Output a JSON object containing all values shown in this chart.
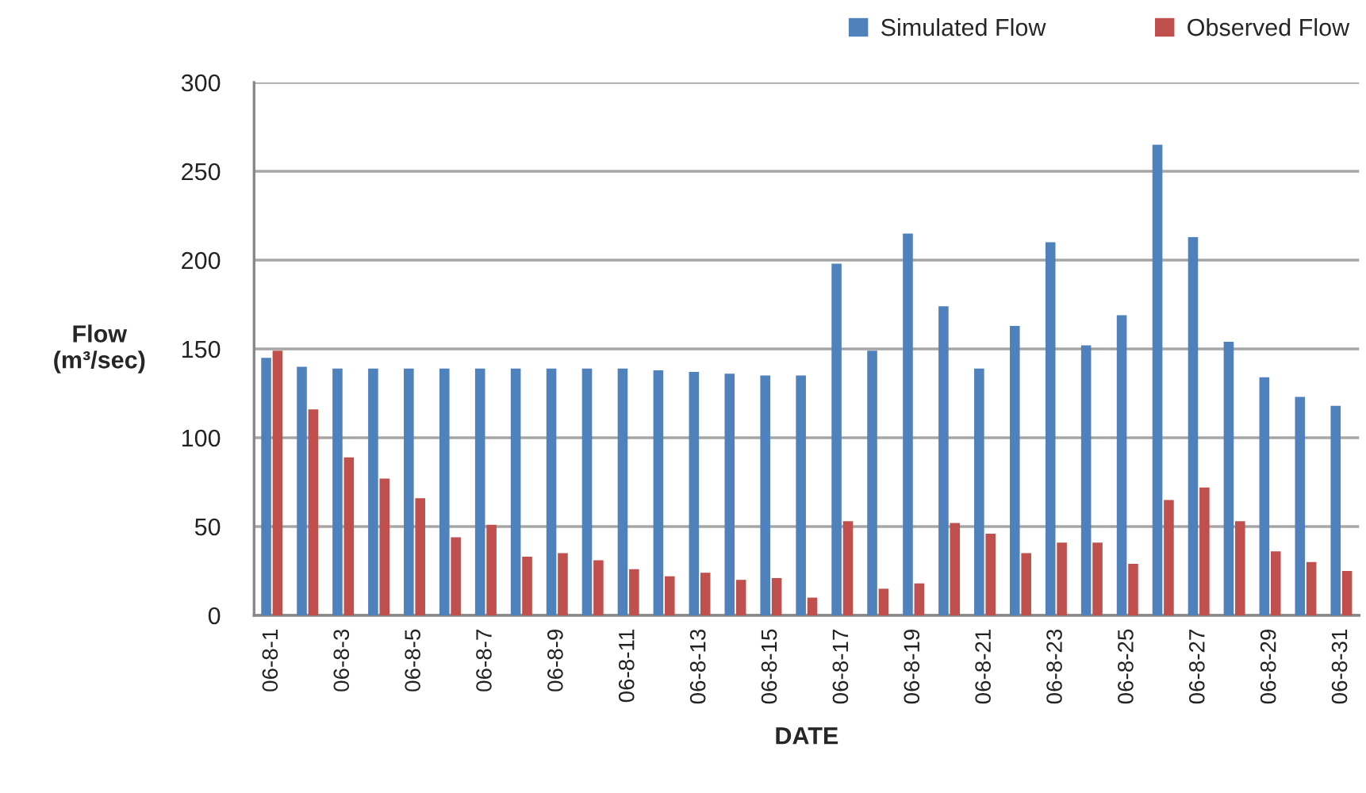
{
  "chart_data": {
    "type": "bar",
    "xlabel": "DATE",
    "ylabel": "Flow\n(m³/sec)",
    "categories": [
      "06-8-1",
      null,
      "06-8-3",
      null,
      "06-8-5",
      null,
      "06-8-7",
      null,
      "06-8-9",
      null,
      "06-8-11",
      null,
      "06-8-13",
      null,
      "06-8-15",
      null,
      "06-8-17",
      null,
      "06-8-19",
      null,
      "06-8-21",
      null,
      "06-8-23",
      null,
      "06-8-25",
      null,
      "06-8-27",
      null,
      "06-8-29",
      null,
      "06-8-31"
    ],
    "series": [
      {
        "name": "Simulated Flow",
        "color": "#4f81bd",
        "values": [
          145,
          140,
          139,
          139,
          139,
          139,
          139,
          139,
          139,
          139,
          139,
          138,
          137,
          136,
          135,
          135,
          198,
          149,
          215,
          174,
          139,
          163,
          210,
          152,
          169,
          265,
          213,
          154,
          134,
          123,
          118
        ]
      },
      {
        "name": "Observed Flow",
        "color": "#c0504d",
        "values": [
          149,
          116,
          89,
          77,
          66,
          44,
          51,
          33,
          35,
          31,
          26,
          22,
          24,
          20,
          21,
          10,
          53,
          15,
          18,
          52,
          46,
          35,
          41,
          41,
          29,
          65,
          72,
          53,
          36,
          30,
          25
        ]
      }
    ],
    "ylim": [
      0,
      300
    ],
    "yticks": [
      0,
      50,
      100,
      150,
      200,
      250,
      300
    ],
    "grid": "y",
    "legend": "top right"
  }
}
